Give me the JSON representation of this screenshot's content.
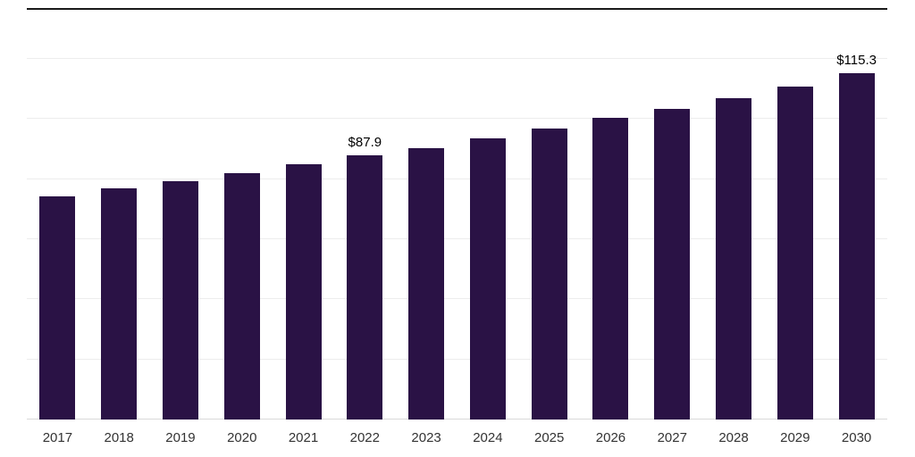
{
  "chart_data": {
    "type": "bar",
    "title": "",
    "xlabel": "",
    "ylabel": "",
    "categories": [
      "2017",
      "2018",
      "2019",
      "2020",
      "2021",
      "2022",
      "2023",
      "2024",
      "2025",
      "2026",
      "2027",
      "2028",
      "2029",
      "2030"
    ],
    "values": [
      74.3,
      76.9,
      79.3,
      82.0,
      85.0,
      87.9,
      90.3,
      93.6,
      96.8,
      100.4,
      103.4,
      106.9,
      110.8,
      115.3
    ],
    "data_labels": [
      "",
      "",
      "",
      "",
      "",
      "$87.9",
      "",
      "",
      "",
      "",
      "",
      "",
      "",
      "$115.3"
    ],
    "ylim": [
      0,
      120
    ],
    "gridline_step": 20,
    "grid": true,
    "legend_position": "none",
    "bar_color": "#2a1245",
    "gridline_color": "#ededed",
    "baseline_color": "#d9d9d9",
    "axis_label_color": "#333333",
    "data_label_color": "#000000",
    "top_rule_color": "#1a1a1a"
  }
}
